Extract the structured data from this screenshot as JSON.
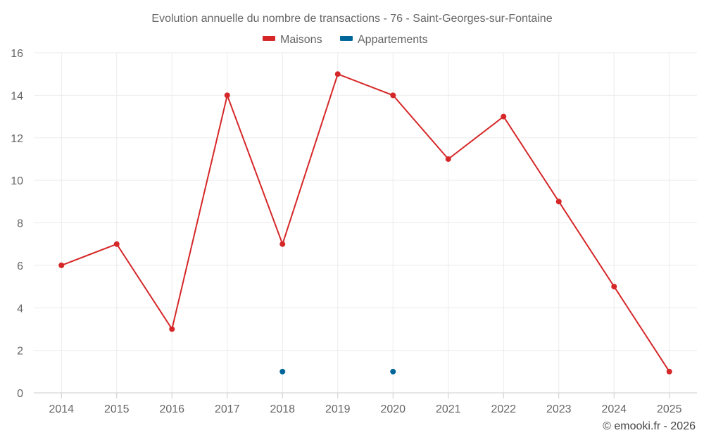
{
  "chart_data": {
    "type": "line",
    "title": "Evolution annuelle du nombre de transactions - 76 - Saint-Georges-sur-Fontaine",
    "categories": [
      "2014",
      "2015",
      "2016",
      "2017",
      "2018",
      "2019",
      "2020",
      "2021",
      "2022",
      "2023",
      "2024",
      "2025"
    ],
    "ylim": [
      0,
      16
    ],
    "yticks": [
      0,
      2,
      4,
      6,
      8,
      10,
      12,
      14,
      16
    ],
    "grid": true,
    "legend_position": "top-center",
    "series": [
      {
        "name": "Maisons",
        "color": "#d62728",
        "values": [
          6,
          7,
          3,
          14,
          7,
          15,
          14,
          11,
          13,
          9,
          5,
          1
        ]
      },
      {
        "name": "Appartements",
        "color": "#006699",
        "values": [
          null,
          null,
          null,
          null,
          1,
          null,
          1,
          null,
          null,
          null,
          null,
          null
        ]
      }
    ]
  },
  "credit": "© emooki.fr - 2026"
}
